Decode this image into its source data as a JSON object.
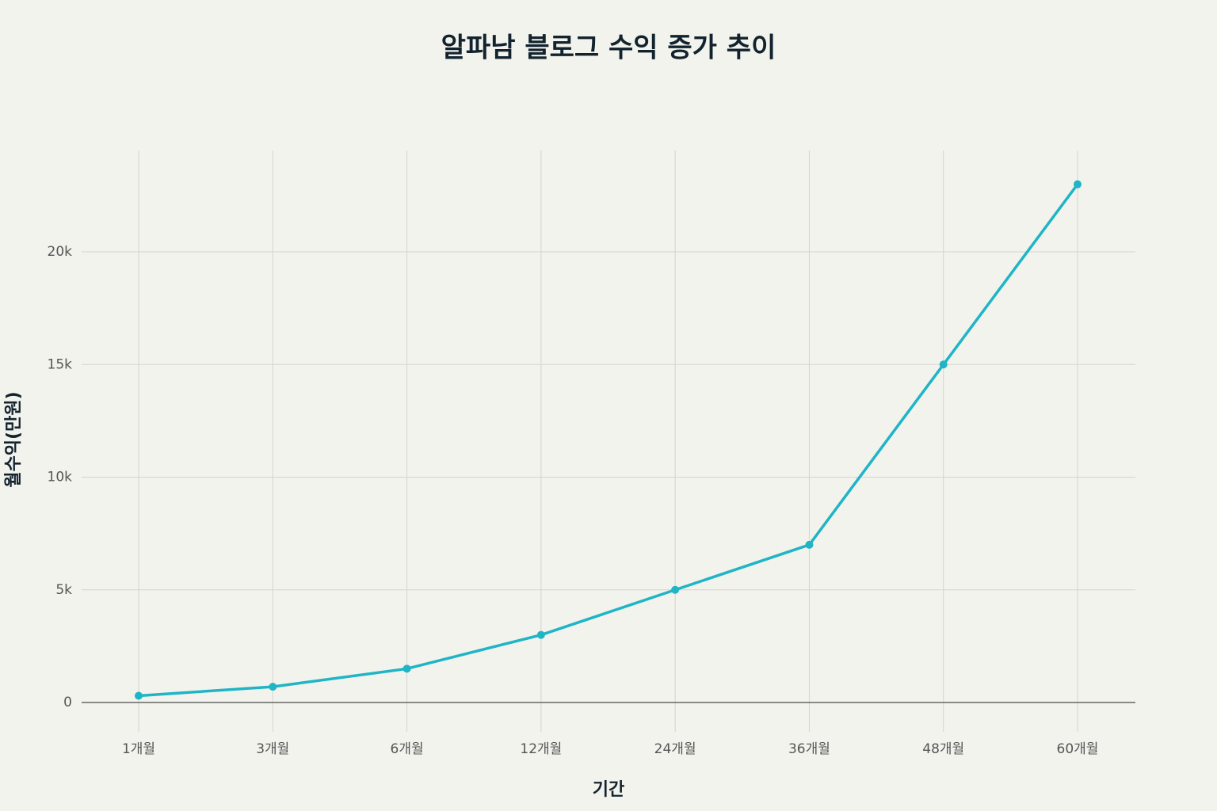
{
  "chart_data": {
    "type": "line",
    "title": "알파남 블로그 수익 증가 추이",
    "x_label": "기간",
    "y_label": "월수익(만원)",
    "categories": [
      "1개월",
      "3개월",
      "6개월",
      "12개월",
      "24개월",
      "36개월",
      "48개월",
      "60개월"
    ],
    "series": [
      {
        "name": "월수익",
        "color": "#1fb5c6",
        "values": [
          300,
          700,
          1500,
          3000,
          5000,
          7000,
          15000,
          23000
        ]
      }
    ],
    "ylim": [
      -1300,
      24500
    ],
    "yticks": [
      0,
      {
        "value": 5000,
        "label": "5k"
      },
      {
        "value": 10000,
        "label": "10k"
      },
      {
        "value": 15000,
        "label": "15k"
      },
      {
        "value": 20000,
        "label": "20k"
      }
    ],
    "grid": true
  }
}
